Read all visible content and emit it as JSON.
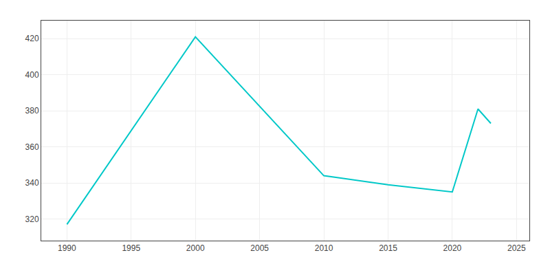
{
  "chart_data": {
    "type": "line",
    "x": [
      1990,
      2000,
      2010,
      2015,
      2020,
      2022,
      2023
    ],
    "values": [
      317,
      421,
      344,
      339,
      335,
      381,
      373
    ],
    "color": "#00c8c8",
    "xlim": [
      1988,
      2026
    ],
    "ylim": [
      308,
      430
    ],
    "xticks": [
      1990,
      1995,
      2000,
      2005,
      2010,
      2015,
      2020,
      2025
    ],
    "yticks": [
      320,
      340,
      360,
      380,
      400,
      420
    ],
    "grid": true
  }
}
